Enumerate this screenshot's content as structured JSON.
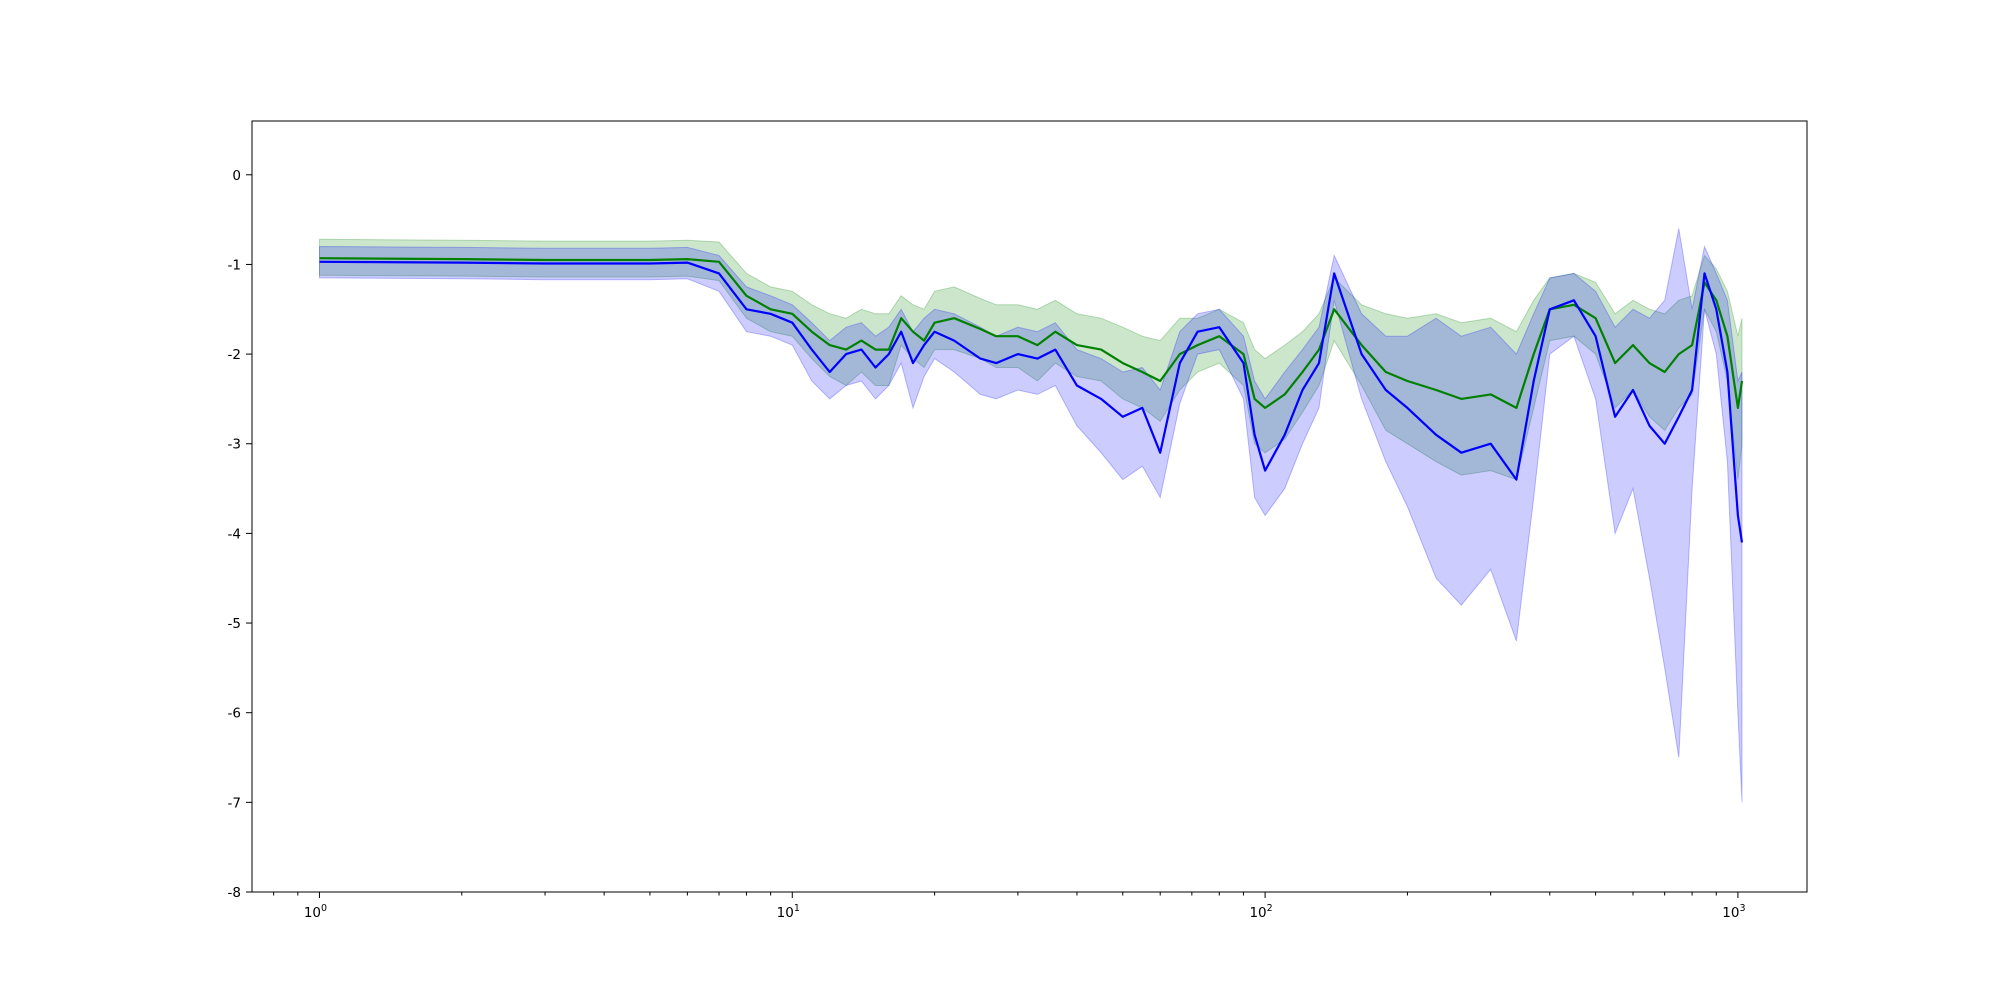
{
  "chart_data": {
    "type": "area",
    "x_scale": "log",
    "xlim": [
      0.72,
      1400
    ],
    "ylim": [
      -8,
      0.6
    ],
    "grid": false,
    "legend": "none",
    "title": "",
    "xlabel": "",
    "ylabel": "",
    "x_ticks": [
      {
        "value": 1,
        "base": "10",
        "exp": "0"
      },
      {
        "value": 10,
        "base": "10",
        "exp": "1"
      },
      {
        "value": 100,
        "base": "10",
        "exp": "2"
      },
      {
        "value": 1000,
        "base": "10",
        "exp": "3"
      }
    ],
    "y_ticks": [
      {
        "value": 0,
        "label": "0"
      },
      {
        "value": -1,
        "label": "-1"
      },
      {
        "value": -2,
        "label": "-2"
      },
      {
        "value": -3,
        "label": "-3"
      },
      {
        "value": -4,
        "label": "-4"
      },
      {
        "value": -5,
        "label": "-5"
      },
      {
        "value": -6,
        "label": "-6"
      },
      {
        "value": -7,
        "label": "-7"
      },
      {
        "value": -8,
        "label": "-8"
      }
    ],
    "series": [
      {
        "color": "#008000",
        "band_color": "#008000",
        "x": [
          1,
          2,
          3,
          4,
          5,
          6,
          7,
          8,
          9,
          10,
          11,
          12,
          13,
          14,
          15,
          16,
          17,
          18,
          19,
          20,
          22,
          25,
          27,
          30,
          33,
          36,
          40,
          45,
          50,
          55,
          60,
          66,
          72,
          80,
          90,
          95,
          100,
          110,
          120,
          130,
          140,
          160,
          180,
          200,
          230,
          260,
          300,
          340,
          370,
          400,
          450,
          500,
          550,
          600,
          650,
          700,
          750,
          800,
          850,
          900,
          950,
          1000,
          1020
        ],
        "y": [
          -0.93,
          -0.94,
          -0.95,
          -0.95,
          -0.95,
          -0.94,
          -0.97,
          -1.35,
          -1.5,
          -1.55,
          -1.75,
          -1.9,
          -1.95,
          -1.85,
          -1.95,
          -1.95,
          -1.6,
          -1.75,
          -1.85,
          -1.65,
          -1.6,
          -1.72,
          -1.8,
          -1.8,
          -1.9,
          -1.75,
          -1.9,
          -1.95,
          -2.1,
          -2.2,
          -2.3,
          -2.0,
          -1.9,
          -1.8,
          -2.0,
          -2.5,
          -2.6,
          -2.45,
          -2.2,
          -1.95,
          -1.5,
          -1.9,
          -2.2,
          -2.3,
          -2.4,
          -2.5,
          -2.45,
          -2.6,
          -2.0,
          -1.5,
          -1.45,
          -1.6,
          -2.1,
          -1.9,
          -2.1,
          -2.2,
          -2.0,
          -1.9,
          -1.2,
          -1.4,
          -1.8,
          -2.6,
          -2.3
        ],
        "upper": [
          -0.72,
          -0.73,
          -0.74,
          -0.74,
          -0.74,
          -0.73,
          -0.75,
          -1.1,
          -1.25,
          -1.3,
          -1.45,
          -1.55,
          -1.6,
          -1.5,
          -1.55,
          -1.55,
          -1.35,
          -1.45,
          -1.5,
          -1.3,
          -1.25,
          -1.38,
          -1.45,
          -1.45,
          -1.5,
          -1.4,
          -1.55,
          -1.6,
          -1.7,
          -1.8,
          -1.85,
          -1.6,
          -1.6,
          -1.5,
          -1.65,
          -1.95,
          -2.05,
          -1.9,
          -1.75,
          -1.55,
          -1.15,
          -1.45,
          -1.55,
          -1.6,
          -1.55,
          -1.65,
          -1.6,
          -1.75,
          -1.4,
          -1.15,
          -1.1,
          -1.2,
          -1.55,
          -1.4,
          -1.5,
          -1.55,
          -1.4,
          -1.35,
          -0.9,
          -1.05,
          -1.3,
          -1.8,
          -1.6
        ],
        "lower": [
          -1.12,
          -1.13,
          -1.14,
          -1.14,
          -1.14,
          -1.13,
          -1.18,
          -1.6,
          -1.75,
          -1.8,
          -2.05,
          -2.25,
          -2.35,
          -2.2,
          -2.35,
          -2.35,
          -1.9,
          -2.05,
          -2.15,
          -1.95,
          -1.95,
          -2.05,
          -2.15,
          -2.15,
          -2.3,
          -2.1,
          -2.25,
          -2.3,
          -2.5,
          -2.6,
          -2.75,
          -2.4,
          -2.2,
          -2.1,
          -2.35,
          -3.0,
          -3.1,
          -2.95,
          -2.65,
          -2.35,
          -1.85,
          -2.35,
          -2.85,
          -3.0,
          -3.2,
          -3.35,
          -3.3,
          -3.4,
          -2.6,
          -1.85,
          -1.8,
          -2.0,
          -2.6,
          -2.4,
          -2.7,
          -2.85,
          -2.6,
          -2.45,
          -1.5,
          -1.75,
          -2.3,
          -3.4,
          -3.0
        ]
      },
      {
        "color": "#0000ff",
        "band_color": "#0000ff",
        "x": [
          1,
          2,
          3,
          4,
          5,
          6,
          7,
          8,
          9,
          10,
          11,
          12,
          13,
          14,
          15,
          16,
          17,
          18,
          19,
          20,
          22,
          25,
          27,
          30,
          33,
          36,
          40,
          45,
          50,
          55,
          60,
          66,
          72,
          80,
          90,
          95,
          100,
          110,
          120,
          130,
          140,
          160,
          180,
          200,
          230,
          260,
          300,
          340,
          370,
          400,
          450,
          500,
          550,
          600,
          650,
          700,
          750,
          800,
          850,
          900,
          950,
          1000,
          1020
        ],
        "y": [
          -0.97,
          -0.98,
          -0.99,
          -0.99,
          -0.99,
          -0.98,
          -1.1,
          -1.5,
          -1.55,
          -1.65,
          -1.95,
          -2.2,
          -2.0,
          -1.95,
          -2.15,
          -2.0,
          -1.75,
          -2.1,
          -1.9,
          -1.75,
          -1.85,
          -2.05,
          -2.1,
          -2.0,
          -2.05,
          -1.95,
          -2.35,
          -2.5,
          -2.7,
          -2.6,
          -3.1,
          -2.1,
          -1.75,
          -1.7,
          -2.1,
          -2.9,
          -3.3,
          -2.9,
          -2.4,
          -2.1,
          -1.1,
          -2.0,
          -2.4,
          -2.6,
          -2.9,
          -3.1,
          -3.0,
          -3.4,
          -2.3,
          -1.5,
          -1.4,
          -1.8,
          -2.7,
          -2.4,
          -2.8,
          -3.0,
          -2.7,
          -2.4,
          -1.1,
          -1.5,
          -2.2,
          -3.8,
          -4.1
        ],
        "upper": [
          -0.8,
          -0.81,
          -0.82,
          -0.82,
          -0.82,
          -0.81,
          -0.9,
          -1.25,
          -1.35,
          -1.45,
          -1.65,
          -1.85,
          -1.7,
          -1.65,
          -1.8,
          -1.7,
          -1.5,
          -1.75,
          -1.6,
          -1.5,
          -1.55,
          -1.7,
          -1.8,
          -1.7,
          -1.75,
          -1.65,
          -1.95,
          -2.05,
          -2.2,
          -2.15,
          -2.4,
          -1.75,
          -1.55,
          -1.5,
          -1.8,
          -2.3,
          -2.5,
          -2.2,
          -1.95,
          -1.7,
          -0.9,
          -1.55,
          -1.8,
          -1.8,
          -1.6,
          -1.8,
          -1.7,
          -2.0,
          -1.55,
          -1.15,
          -1.1,
          -1.3,
          -1.7,
          -1.5,
          -1.6,
          -1.4,
          -0.6,
          -1.5,
          -0.8,
          -1.1,
          -1.4,
          -2.3,
          -2.2
        ],
        "lower": [
          -1.15,
          -1.16,
          -1.17,
          -1.17,
          -1.17,
          -1.16,
          -1.3,
          -1.75,
          -1.8,
          -1.9,
          -2.3,
          -2.5,
          -2.35,
          -2.3,
          -2.5,
          -2.35,
          -2.1,
          -2.6,
          -2.25,
          -2.05,
          -2.2,
          -2.45,
          -2.5,
          -2.4,
          -2.45,
          -2.35,
          -2.8,
          -3.1,
          -3.4,
          -3.25,
          -3.6,
          -2.55,
          -2.0,
          -1.95,
          -2.5,
          -3.6,
          -3.8,
          -3.5,
          -3.0,
          -2.6,
          -1.4,
          -2.5,
          -3.2,
          -3.7,
          -4.5,
          -4.8,
          -4.4,
          -5.2,
          -3.6,
          -2.0,
          -1.8,
          -2.5,
          -4.0,
          -3.5,
          -4.5,
          -5.5,
          -6.5,
          -3.5,
          -1.5,
          -2.0,
          -3.2,
          -6.0,
          -7.0
        ]
      }
    ]
  }
}
